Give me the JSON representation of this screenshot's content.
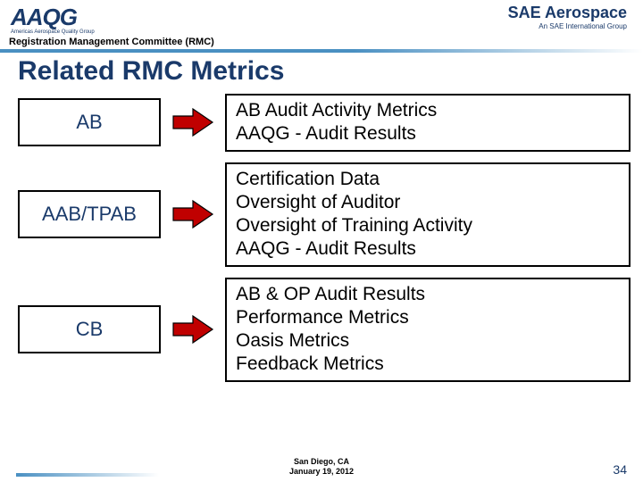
{
  "header": {
    "logo_left_main": "AAQG",
    "logo_left_sub": "Americas Aerospace Quality Group",
    "logo_right_main": "SAE Aerospace",
    "logo_right_sub": "An SAE International Group",
    "committee": "Registration Management Committee (RMC)"
  },
  "title": "Related RMC Metrics",
  "rows": [
    {
      "label": "AB",
      "desc": "AB Audit Activity Metrics\nAAQG - Audit Results"
    },
    {
      "label": "AAB/TPAB",
      "desc": "Certification Data\nOversight of Auditor\nOversight of Training Activity\nAAQG - Audit Results"
    },
    {
      "label": "CB",
      "desc": "AB & OP Audit Results\nPerformance Metrics\nOasis Metrics\nFeedback Metrics"
    }
  ],
  "footer": {
    "location": "San Diego, CA",
    "date": "January 19, 2012",
    "page": "34"
  },
  "colors": {
    "brand_blue": "#1a3a6a",
    "gradient_blue": "#4a90c2",
    "arrow_fill": "#c00000",
    "arrow_stroke": "#000000",
    "box_border": "#000000",
    "background": "#ffffff"
  }
}
